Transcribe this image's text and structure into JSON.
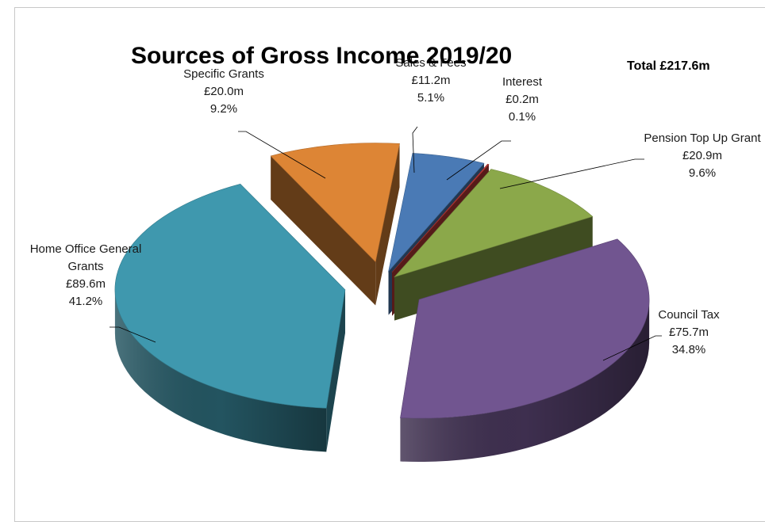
{
  "chart_data": {
    "type": "pie",
    "title": "Sources of Gross Income 2019/20",
    "subtitle": "Total £217.6m",
    "slices": [
      {
        "label_lines": [
          "Sales & Fees"
        ],
        "value_label": "£11.2m",
        "percent_label": "5.1%",
        "value": 11.2,
        "percent": 5.1,
        "color": "#4a7ab5"
      },
      {
        "label_lines": [
          "Interest"
        ],
        "value_label": "£0.2m",
        "percent_label": "0.1%",
        "value": 0.2,
        "percent": 0.1,
        "color": "#be3b38"
      },
      {
        "label_lines": [
          "Pension Top Up Grant"
        ],
        "value_label": "£20.9m",
        "percent_label": "9.6%",
        "value": 20.9,
        "percent": 9.6,
        "color": "#8ba84a"
      },
      {
        "label_lines": [
          "Council Tax"
        ],
        "value_label": "£75.7m",
        "percent_label": "34.8%",
        "value": 75.7,
        "percent": 34.8,
        "color": "#715590"
      },
      {
        "label_lines": [
          "Home Office General",
          "Grants"
        ],
        "value_label": "£89.6m",
        "percent_label": "41.2%",
        "value": 89.6,
        "percent": 41.2,
        "color": "#3f98ae"
      },
      {
        "label_lines": [
          "Specific Grants"
        ],
        "value_label": "£20.0m",
        "percent_label": "9.2%",
        "value": 20.0,
        "percent": 9.2,
        "color": "#dd8535"
      }
    ]
  }
}
